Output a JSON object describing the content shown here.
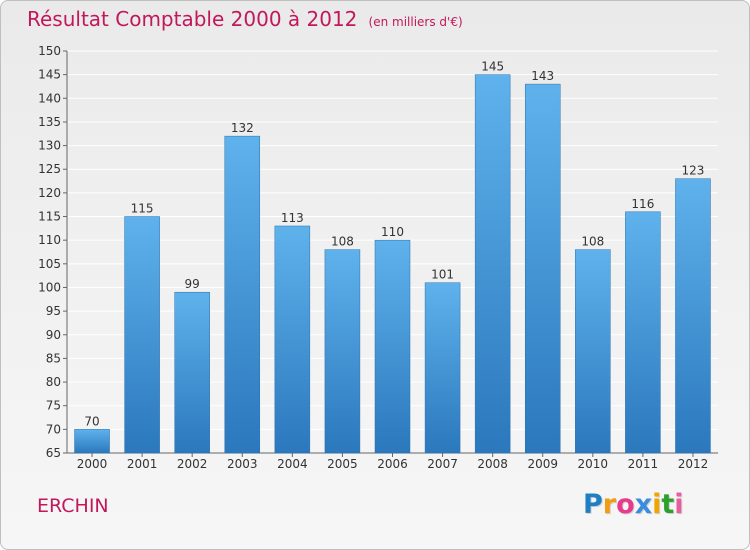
{
  "title": "Résultat Comptable 2000 à 2012",
  "unit": "(en milliers d'€)",
  "commune": "ERCHIN",
  "brand": {
    "letters": [
      "P",
      "r",
      "o",
      "x",
      "i",
      "t",
      "i"
    ],
    "colors": [
      "#1e7fc4",
      "#f39c12",
      "#e83a8b",
      "#3a8dde",
      "#f0a500",
      "#2ca02c",
      "#e85d9e"
    ]
  },
  "colors": {
    "title": "#c2185b",
    "bar_top": "#5fb2ec",
    "bar_bottom": "#2b78bd",
    "grid": "#ffffff",
    "axis_text": "#333333"
  },
  "chart_data": {
    "type": "bar",
    "title": "Résultat Comptable 2000 à 2012",
    "xlabel": "",
    "ylabel": "(en milliers d'€)",
    "categories": [
      "2000",
      "2001",
      "2002",
      "2003",
      "2004",
      "2005",
      "2006",
      "2007",
      "2008",
      "2009",
      "2010",
      "2011",
      "2012"
    ],
    "values": [
      70,
      115,
      99,
      132,
      113,
      108,
      110,
      101,
      145,
      143,
      108,
      116,
      123
    ],
    "ylim": [
      65,
      150
    ],
    "yticks": [
      65,
      70,
      75,
      80,
      85,
      90,
      95,
      100,
      105,
      110,
      115,
      120,
      125,
      130,
      135,
      140,
      145,
      150
    ],
    "grid": true,
    "data_labels": true
  }
}
